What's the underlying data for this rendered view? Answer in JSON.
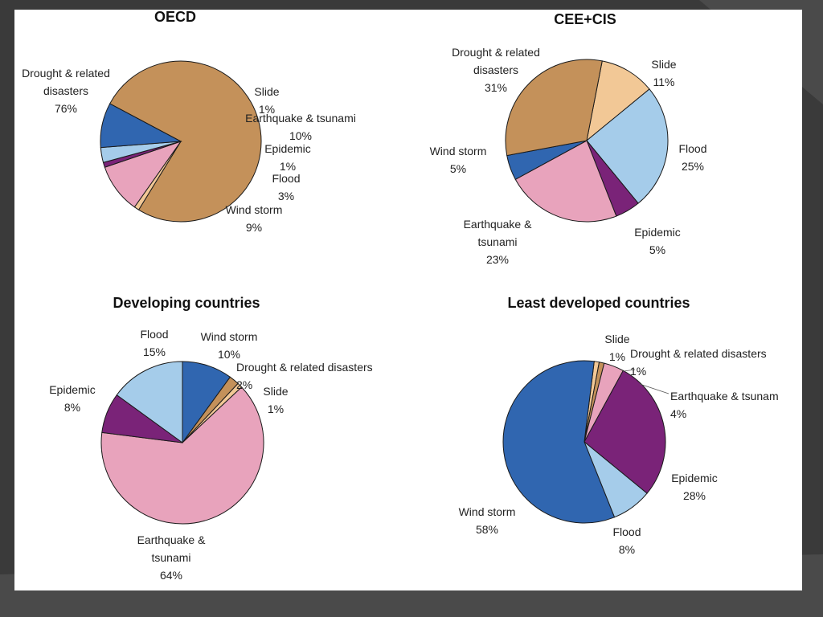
{
  "chart_data": [
    {
      "type": "pie",
      "title": "OECD",
      "slices": [
        {
          "label_lines": [
            "Drought & related",
            "disasters",
            "76%"
          ],
          "value": 76,
          "color": "#C4915A"
        },
        {
          "label_lines": [
            "Slide",
            "1%"
          ],
          "value": 1,
          "color": "#F2C896"
        },
        {
          "label_lines": [
            "Earthquake & tsunami",
            "10%"
          ],
          "value": 10,
          "color": "#E8A3BC"
        },
        {
          "label_lines": [
            "Epidemic",
            "1%"
          ],
          "value": 1,
          "color": "#7A2378"
        },
        {
          "label_lines": [
            "Flood",
            "3%"
          ],
          "value": 3,
          "color": "#A5CCEA"
        },
        {
          "label_lines": [
            "Wind storm",
            "9%"
          ],
          "value": 9,
          "color": "#3066B0"
        }
      ]
    },
    {
      "type": "pie",
      "title": "CEE+CIS",
      "slices": [
        {
          "label_lines": [
            "Slide",
            "11%"
          ],
          "value": 11,
          "color": "#F2C896"
        },
        {
          "label_lines": [
            "Flood",
            "25%"
          ],
          "value": 25,
          "color": "#A5CCEA"
        },
        {
          "label_lines": [
            "Epidemic",
            "5%"
          ],
          "value": 5,
          "color": "#7A2378"
        },
        {
          "label_lines": [
            "Earthquake &",
            "tsunami",
            "23%"
          ],
          "value": 23,
          "color": "#E8A3BC"
        },
        {
          "label_lines": [
            "Wind storm",
            "5%"
          ],
          "value": 5,
          "color": "#3066B0"
        },
        {
          "label_lines": [
            "Drought & related",
            "disasters",
            "31%"
          ],
          "value": 31,
          "color": "#C4915A"
        }
      ]
    },
    {
      "type": "pie",
      "title": "Developing countries",
      "slices": [
        {
          "label_lines": [
            "Wind storm",
            "10%"
          ],
          "value": 10,
          "color": "#3066B0"
        },
        {
          "label_lines": [
            "Drought & related disasters",
            "2%"
          ],
          "value": 2,
          "color": "#C4915A"
        },
        {
          "label_lines": [
            "Slide",
            "1%"
          ],
          "value": 1,
          "color": "#F2C896"
        },
        {
          "label_lines": [
            "Earthquake &",
            "tsunami",
            "64%"
          ],
          "value": 64,
          "color": "#E8A3BC"
        },
        {
          "label_lines": [
            "Epidemic",
            "8%"
          ],
          "value": 8,
          "color": "#7A2378"
        },
        {
          "label_lines": [
            "Flood",
            "15%"
          ],
          "value": 15,
          "color": "#A5CCEA"
        }
      ]
    },
    {
      "type": "pie",
      "title": "Least developed countries",
      "slices": [
        {
          "label_lines": [
            "Slide",
            "1%"
          ],
          "value": 1,
          "color": "#F2C896"
        },
        {
          "label_lines": [
            "Drought & related disasters",
            "1%"
          ],
          "value": 1,
          "color": "#C4915A"
        },
        {
          "label_lines": [
            "Earthquake & tsunam",
            "4%"
          ],
          "value": 4,
          "color": "#E8A3BC"
        },
        {
          "label_lines": [
            "Epidemic",
            "28%"
          ],
          "value": 28,
          "color": "#7A2378"
        },
        {
          "label_lines": [
            "Flood",
            "8%"
          ],
          "value": 8,
          "color": "#A5CCEA"
        },
        {
          "label_lines": [
            "Wind storm",
            "58%"
          ],
          "value": 58,
          "color": "#3066B0"
        }
      ]
    }
  ]
}
